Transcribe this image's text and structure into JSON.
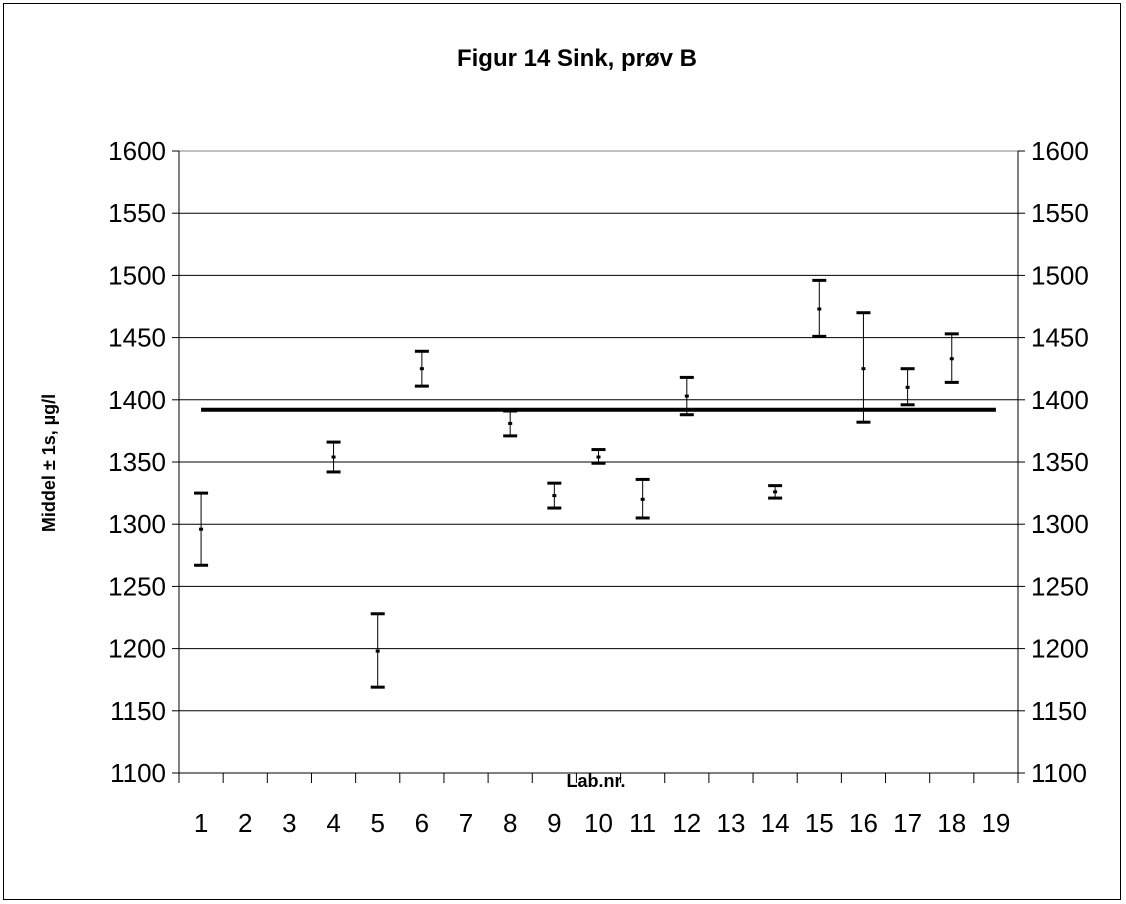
{
  "chart_data": {
    "type": "errorbar",
    "title": "Figur 14 Sink, prøv B",
    "xlabel": "Lab.nr.",
    "ylabel": "Middel ± 1s, µg/l",
    "categories": [
      "1",
      "2",
      "3",
      "4",
      "5",
      "6",
      "7",
      "8",
      "9",
      "10",
      "11",
      "12",
      "13",
      "14",
      "15",
      "16",
      "17",
      "18",
      "19"
    ],
    "ylim": [
      1100,
      1600
    ],
    "yticks": [
      1100,
      1150,
      1200,
      1250,
      1300,
      1350,
      1400,
      1450,
      1500,
      1550,
      1600
    ],
    "grid": true,
    "reference_line": 1392,
    "points": [
      {
        "lab": "1",
        "mean": 1296,
        "low": 1267,
        "high": 1325
      },
      {
        "lab": "4",
        "mean": 1354,
        "low": 1342,
        "high": 1366
      },
      {
        "lab": "5",
        "mean": 1198,
        "low": 1169,
        "high": 1228
      },
      {
        "lab": "6",
        "mean": 1425,
        "low": 1411,
        "high": 1439
      },
      {
        "lab": "8",
        "mean": 1381,
        "low": 1371,
        "high": 1391
      },
      {
        "lab": "9",
        "mean": 1323,
        "low": 1313,
        "high": 1333
      },
      {
        "lab": "10",
        "mean": 1354,
        "low": 1349,
        "high": 1360
      },
      {
        "lab": "11",
        "mean": 1320,
        "low": 1305,
        "high": 1336
      },
      {
        "lab": "12",
        "mean": 1403,
        "low": 1388,
        "high": 1418
      },
      {
        "lab": "14",
        "mean": 1326,
        "low": 1321,
        "high": 1331
      },
      {
        "lab": "15",
        "mean": 1473,
        "low": 1451,
        "high": 1496
      },
      {
        "lab": "16",
        "mean": 1425,
        "low": 1382,
        "high": 1470
      },
      {
        "lab": "17",
        "mean": 1410,
        "low": 1396,
        "high": 1425
      },
      {
        "lab": "18",
        "mean": 1433,
        "low": 1414,
        "high": 1453
      }
    ]
  }
}
